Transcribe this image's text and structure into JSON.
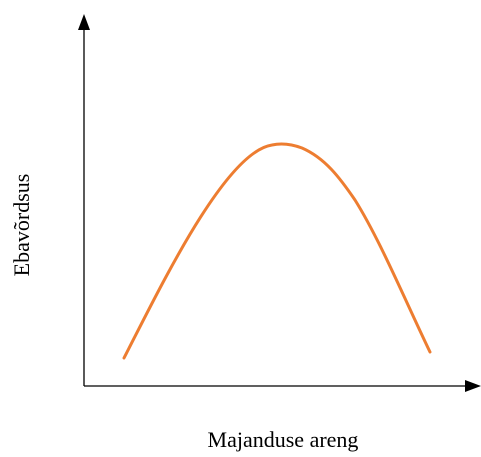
{
  "x_axis_label": "Majanduse areng",
  "y_axis_label": "Ebavõrdsus"
}
